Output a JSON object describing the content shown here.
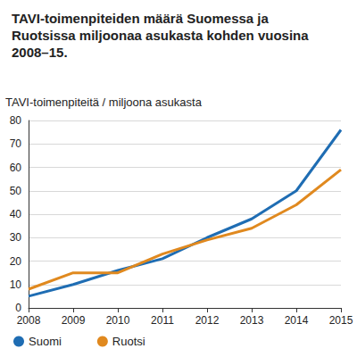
{
  "chart_data": {
    "type": "line",
    "title": "TAVI-toimenpiteiden määrä Suomessa ja Ruotsissa miljoonaa asukasta kohden vuosina 2008–15.",
    "y_label": "TAVI-toimenpiteitä / miljoona asukasta",
    "categories": [
      "2008",
      "2009",
      "2010",
      "2011",
      "2012",
      "2013",
      "2014",
      "2015"
    ],
    "series": [
      {
        "name": "Suomi",
        "color": "#1f6db3",
        "values": [
          5,
          10,
          16,
          21,
          30,
          38,
          50,
          76
        ]
      },
      {
        "name": "Ruotsi",
        "color": "#e0891f",
        "values": [
          8,
          15,
          15,
          23,
          29,
          34,
          44,
          59
        ]
      }
    ],
    "ylim": [
      0,
      80
    ],
    "yticks": [
      0,
      10,
      20,
      30,
      40,
      50,
      60,
      70,
      80
    ],
    "grid": true,
    "legend": "bottom"
  }
}
